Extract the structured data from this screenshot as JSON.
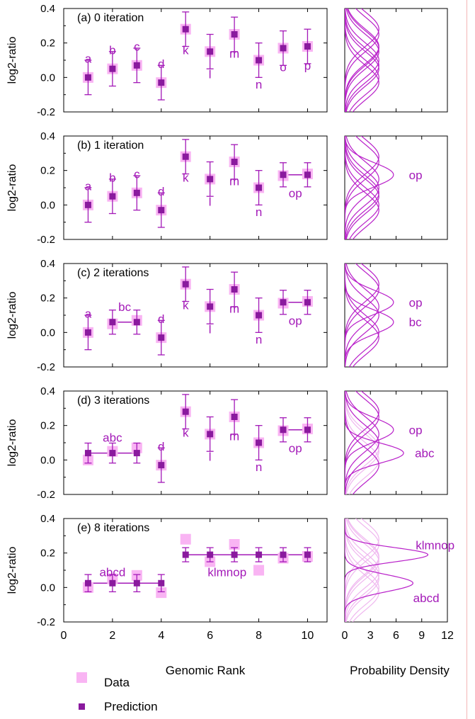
{
  "colors": {
    "data": "#f9b4f3",
    "prediction": "#8a1a9e",
    "label": "#a319b8",
    "curve": "#b81fc9",
    "curve_faint": "#efb7ef",
    "axis": "#000000"
  },
  "legend": {
    "data_label": "Data",
    "prediction_label": "Prediction"
  },
  "chart_data": [
    {
      "type": "scatter",
      "title": "(a) 0 iteration",
      "xlabel": "",
      "ylabel": "log2-ratio",
      "ylim": [
        -0.2,
        0.4
      ],
      "xlim": [
        0,
        10.8
      ],
      "yticks": [
        "0.4",
        "0.2",
        "0.0",
        "-0.2"
      ],
      "series": [
        {
          "name": "Data",
          "x": [
            1,
            2,
            3,
            4,
            5,
            6,
            7,
            8,
            9,
            10
          ],
          "y": [
            0.0,
            0.05,
            0.07,
            -0.03,
            0.28,
            0.15,
            0.25,
            0.1,
            0.17,
            0.18
          ]
        },
        {
          "name": "Prediction",
          "x": [
            1,
            2,
            3,
            4,
            5,
            6,
            7,
            8,
            9,
            10
          ],
          "y": [
            0.0,
            0.05,
            0.07,
            -0.03,
            0.28,
            0.15,
            0.25,
            0.1,
            0.17,
            0.18
          ],
          "err": [
            0.1,
            0.1,
            0.1,
            0.1,
            0.1,
            0.1,
            0.1,
            0.1,
            0.1,
            0.1
          ]
        }
      ],
      "segments": [],
      "point_labels": [
        {
          "text": "a",
          "x": 1,
          "y": 0.11
        },
        {
          "text": "b",
          "x": 2,
          "y": 0.16
        },
        {
          "text": "c",
          "x": 3,
          "y": 0.18
        },
        {
          "text": "d",
          "x": 4,
          "y": 0.08
        },
        {
          "text": "k",
          "x": 5,
          "y": 0.16
        },
        {
          "text": "l",
          "x": 6,
          "y": 0.02
        },
        {
          "text": "m",
          "x": 7,
          "y": 0.14
        },
        {
          "text": "n",
          "x": 8,
          "y": -0.04
        },
        {
          "text": "o",
          "x": 9,
          "y": 0.06
        },
        {
          "text": "p",
          "x": 10,
          "y": 0.07
        }
      ],
      "density": {
        "xlim": [
          0,
          12
        ],
        "curves": [
          {
            "mu": 0.0,
            "sigma": 0.1,
            "w": 1
          },
          {
            "mu": 0.05,
            "sigma": 0.1,
            "w": 1
          },
          {
            "mu": 0.07,
            "sigma": 0.1,
            "w": 1
          },
          {
            "mu": -0.03,
            "sigma": 0.1,
            "w": 1
          },
          {
            "mu": 0.28,
            "sigma": 0.1,
            "w": 1
          },
          {
            "mu": 0.15,
            "sigma": 0.1,
            "w": 1
          },
          {
            "mu": 0.25,
            "sigma": 0.1,
            "w": 1
          },
          {
            "mu": 0.1,
            "sigma": 0.1,
            "w": 1
          },
          {
            "mu": 0.17,
            "sigma": 0.1,
            "w": 1
          },
          {
            "mu": 0.18,
            "sigma": 0.1,
            "w": 1
          }
        ],
        "labels": []
      }
    },
    {
      "type": "scatter",
      "title": "(b) 1 iteration",
      "xlabel": "",
      "ylabel": "log2-ratio",
      "ylim": [
        -0.2,
        0.4
      ],
      "xlim": [
        0,
        10.8
      ],
      "yticks": [
        "0.4",
        "0.2",
        "0.0",
        "-0.2"
      ],
      "series": [
        {
          "name": "Data",
          "x": [
            1,
            2,
            3,
            4,
            5,
            6,
            7,
            8,
            9,
            10
          ],
          "y": [
            0.0,
            0.05,
            0.07,
            -0.03,
            0.28,
            0.15,
            0.25,
            0.1,
            0.17,
            0.18
          ]
        },
        {
          "name": "Prediction",
          "x": [
            1,
            2,
            3,
            4,
            5,
            6,
            7,
            8,
            9,
            10
          ],
          "y": [
            0.0,
            0.05,
            0.07,
            -0.03,
            0.28,
            0.15,
            0.25,
            0.1,
            0.175,
            0.175
          ],
          "err": [
            0.1,
            0.1,
            0.1,
            0.1,
            0.1,
            0.1,
            0.1,
            0.1,
            0.07,
            0.07
          ]
        }
      ],
      "segments": [
        {
          "x1": 9,
          "x2": 10,
          "y": 0.175
        }
      ],
      "point_labels": [
        {
          "text": "a",
          "x": 1,
          "y": 0.11
        },
        {
          "text": "b",
          "x": 2,
          "y": 0.16
        },
        {
          "text": "c",
          "x": 3,
          "y": 0.18
        },
        {
          "text": "d",
          "x": 4,
          "y": 0.08
        },
        {
          "text": "k",
          "x": 5,
          "y": 0.16
        },
        {
          "text": "l",
          "x": 6,
          "y": 0.02
        },
        {
          "text": "m",
          "x": 7,
          "y": 0.14
        },
        {
          "text": "n",
          "x": 8,
          "y": -0.04
        },
        {
          "text": "op",
          "x": 9.5,
          "y": 0.07
        }
      ],
      "density": {
        "xlim": [
          0,
          12
        ],
        "curves": [
          {
            "mu": 0.0,
            "sigma": 0.1,
            "w": 1
          },
          {
            "mu": 0.05,
            "sigma": 0.1,
            "w": 1
          },
          {
            "mu": 0.07,
            "sigma": 0.1,
            "w": 1
          },
          {
            "mu": -0.03,
            "sigma": 0.1,
            "w": 1
          },
          {
            "mu": 0.28,
            "sigma": 0.1,
            "w": 1
          },
          {
            "mu": 0.15,
            "sigma": 0.1,
            "w": 1
          },
          {
            "mu": 0.25,
            "sigma": 0.1,
            "w": 1
          },
          {
            "mu": 0.1,
            "sigma": 0.1,
            "w": 1
          },
          {
            "mu": 0.175,
            "sigma": 0.07,
            "w": 1
          }
        ],
        "labels": [
          {
            "text": "op",
            "x": 7.5,
            "y": 0.175
          }
        ]
      }
    },
    {
      "type": "scatter",
      "title": "(c) 2 iterations",
      "xlabel": "",
      "ylabel": "log2-ratio",
      "ylim": [
        -0.2,
        0.4
      ],
      "xlim": [
        0,
        10.8
      ],
      "yticks": [
        "0.4",
        "0.2",
        "0.0",
        "-0.2"
      ],
      "series": [
        {
          "name": "Data",
          "x": [
            1,
            2,
            3,
            4,
            5,
            6,
            7,
            8,
            9,
            10
          ],
          "y": [
            0.0,
            0.05,
            0.07,
            -0.03,
            0.28,
            0.15,
            0.25,
            0.1,
            0.17,
            0.18
          ]
        },
        {
          "name": "Prediction",
          "x": [
            1,
            2,
            3,
            4,
            5,
            6,
            7,
            8,
            9,
            10
          ],
          "y": [
            0.0,
            0.06,
            0.06,
            -0.03,
            0.28,
            0.15,
            0.25,
            0.1,
            0.175,
            0.175
          ],
          "err": [
            0.1,
            0.07,
            0.07,
            0.1,
            0.1,
            0.1,
            0.1,
            0.1,
            0.07,
            0.07
          ]
        }
      ],
      "segments": [
        {
          "x1": 2,
          "x2": 3,
          "y": 0.06
        },
        {
          "x1": 9,
          "x2": 10,
          "y": 0.175
        }
      ],
      "point_labels": [
        {
          "text": "a",
          "x": 1,
          "y": 0.11
        },
        {
          "text": "bc",
          "x": 2.5,
          "y": 0.15
        },
        {
          "text": "d",
          "x": 4,
          "y": 0.08
        },
        {
          "text": "k",
          "x": 5,
          "y": 0.16
        },
        {
          "text": "l",
          "x": 6,
          "y": 0.02
        },
        {
          "text": "m",
          "x": 7,
          "y": 0.14
        },
        {
          "text": "n",
          "x": 8,
          "y": -0.04
        },
        {
          "text": "op",
          "x": 9.5,
          "y": 0.07
        }
      ],
      "density": {
        "xlim": [
          0,
          12
        ],
        "curves": [
          {
            "mu": 0.0,
            "sigma": 0.1,
            "w": 1
          },
          {
            "mu": 0.06,
            "sigma": 0.07,
            "w": 1
          },
          {
            "mu": -0.03,
            "sigma": 0.1,
            "w": 1
          },
          {
            "mu": 0.28,
            "sigma": 0.1,
            "w": 1
          },
          {
            "mu": 0.15,
            "sigma": 0.1,
            "w": 1
          },
          {
            "mu": 0.25,
            "sigma": 0.1,
            "w": 1
          },
          {
            "mu": 0.1,
            "sigma": 0.1,
            "w": 1
          },
          {
            "mu": 0.175,
            "sigma": 0.07,
            "w": 1
          }
        ],
        "labels": [
          {
            "text": "op",
            "x": 7.5,
            "y": 0.175
          },
          {
            "text": "bc",
            "x": 7.5,
            "y": 0.06
          }
        ]
      }
    },
    {
      "type": "scatter",
      "title": "(d) 3 iterations",
      "xlabel": "",
      "ylabel": "log2-ratio",
      "ylim": [
        -0.2,
        0.4
      ],
      "xlim": [
        0,
        10.8
      ],
      "yticks": [
        "0.4",
        "0.2",
        "0.0",
        "-0.2"
      ],
      "series": [
        {
          "name": "Data",
          "x": [
            1,
            2,
            3,
            4,
            5,
            6,
            7,
            8,
            9,
            10
          ],
          "y": [
            0.0,
            0.05,
            0.07,
            -0.03,
            0.28,
            0.15,
            0.25,
            0.1,
            0.17,
            0.18
          ]
        },
        {
          "name": "Prediction",
          "x": [
            1,
            2,
            3,
            4,
            5,
            6,
            7,
            8,
            9,
            10
          ],
          "y": [
            0.04,
            0.04,
            0.04,
            -0.03,
            0.28,
            0.15,
            0.25,
            0.1,
            0.175,
            0.175
          ],
          "err": [
            0.058,
            0.058,
            0.058,
            0.1,
            0.1,
            0.1,
            0.1,
            0.1,
            0.07,
            0.07
          ]
        }
      ],
      "segments": [
        {
          "x1": 1,
          "x2": 3,
          "y": 0.04
        },
        {
          "x1": 9,
          "x2": 10,
          "y": 0.175
        }
      ],
      "point_labels": [
        {
          "text": "abc",
          "x": 2,
          "y": 0.13
        },
        {
          "text": "d",
          "x": 4,
          "y": 0.08
        },
        {
          "text": "k",
          "x": 5,
          "y": 0.16
        },
        {
          "text": "l",
          "x": 6,
          "y": 0.02
        },
        {
          "text": "m",
          "x": 7,
          "y": 0.14
        },
        {
          "text": "n",
          "x": 8,
          "y": -0.04
        },
        {
          "text": "op",
          "x": 9.5,
          "y": 0.07
        }
      ],
      "density": {
        "xlim": [
          0,
          12
        ],
        "curves": [
          {
            "mu": 0.0,
            "sigma": 0.1,
            "w": 0
          },
          {
            "mu": 0.05,
            "sigma": 0.1,
            "w": 0
          },
          {
            "mu": 0.07,
            "sigma": 0.1,
            "w": 0
          },
          {
            "mu": 0.04,
            "sigma": 0.058,
            "w": 1
          },
          {
            "mu": -0.03,
            "sigma": 0.1,
            "w": 1
          },
          {
            "mu": 0.28,
            "sigma": 0.1,
            "w": 1
          },
          {
            "mu": 0.15,
            "sigma": 0.1,
            "w": 1
          },
          {
            "mu": 0.25,
            "sigma": 0.1,
            "w": 1
          },
          {
            "mu": 0.1,
            "sigma": 0.1,
            "w": 1
          },
          {
            "mu": 0.175,
            "sigma": 0.07,
            "w": 1
          }
        ],
        "labels": [
          {
            "text": "op",
            "x": 7.5,
            "y": 0.175
          },
          {
            "text": "abc",
            "x": 8.2,
            "y": 0.04
          }
        ]
      }
    },
    {
      "type": "scatter",
      "title": "(e) 8 iterations",
      "xlabel": "Genomic Rank",
      "ylabel": "log2-ratio",
      "ylim": [
        -0.2,
        0.4
      ],
      "xlim": [
        0,
        10.8
      ],
      "yticks": [
        "0.4",
        "0.2",
        "0.0",
        "-0.2"
      ],
      "xticks": [
        "0",
        "2",
        "4",
        "6",
        "8",
        "10"
      ],
      "series": [
        {
          "name": "Data",
          "x": [
            1,
            2,
            3,
            4,
            5,
            6,
            7,
            8,
            9,
            10
          ],
          "y": [
            0.0,
            0.05,
            0.07,
            -0.03,
            0.28,
            0.15,
            0.25,
            0.1,
            0.17,
            0.18
          ]
        },
        {
          "name": "Prediction",
          "x": [
            1,
            2,
            3,
            4,
            5,
            6,
            7,
            8,
            9,
            10
          ],
          "y": [
            0.025,
            0.025,
            0.025,
            0.025,
            0.19,
            0.19,
            0.19,
            0.19,
            0.19,
            0.19
          ],
          "err": [
            0.05,
            0.05,
            0.05,
            0.05,
            0.041,
            0.041,
            0.041,
            0.041,
            0.041,
            0.041
          ]
        }
      ],
      "segments": [
        {
          "x1": 1,
          "x2": 4,
          "y": 0.025
        },
        {
          "x1": 5,
          "x2": 10,
          "y": 0.19
        }
      ],
      "point_labels": [
        {
          "text": "abcd",
          "x": 2,
          "y": 0.09
        },
        {
          "text": "klmnop",
          "x": 6.7,
          "y": 0.09
        }
      ],
      "density": {
        "xlim": [
          0,
          12
        ],
        "xlabel": "Probability Density",
        "xticks": [
          "0",
          "3",
          "6",
          "9",
          "12"
        ],
        "curves": [
          {
            "mu": 0.0,
            "sigma": 0.1,
            "w": 0
          },
          {
            "mu": 0.05,
            "sigma": 0.1,
            "w": 0
          },
          {
            "mu": 0.07,
            "sigma": 0.1,
            "w": 0
          },
          {
            "mu": -0.03,
            "sigma": 0.1,
            "w": 0
          },
          {
            "mu": 0.28,
            "sigma": 0.1,
            "w": 0
          },
          {
            "mu": 0.15,
            "sigma": 0.1,
            "w": 0
          },
          {
            "mu": 0.25,
            "sigma": 0.1,
            "w": 0
          },
          {
            "mu": 0.1,
            "sigma": 0.1,
            "w": 0
          },
          {
            "mu": 0.17,
            "sigma": 0.1,
            "w": 0
          },
          {
            "mu": 0.18,
            "sigma": 0.1,
            "w": 0
          },
          {
            "mu": 0.025,
            "sigma": 0.05,
            "w": 1
          },
          {
            "mu": 0.19,
            "sigma": 0.041,
            "w": 1
          }
        ],
        "labels": [
          {
            "text": "klmnop",
            "x": 8.3,
            "y": 0.245
          },
          {
            "text": "abcd",
            "x": 8.0,
            "y": -0.06
          }
        ]
      }
    }
  ]
}
